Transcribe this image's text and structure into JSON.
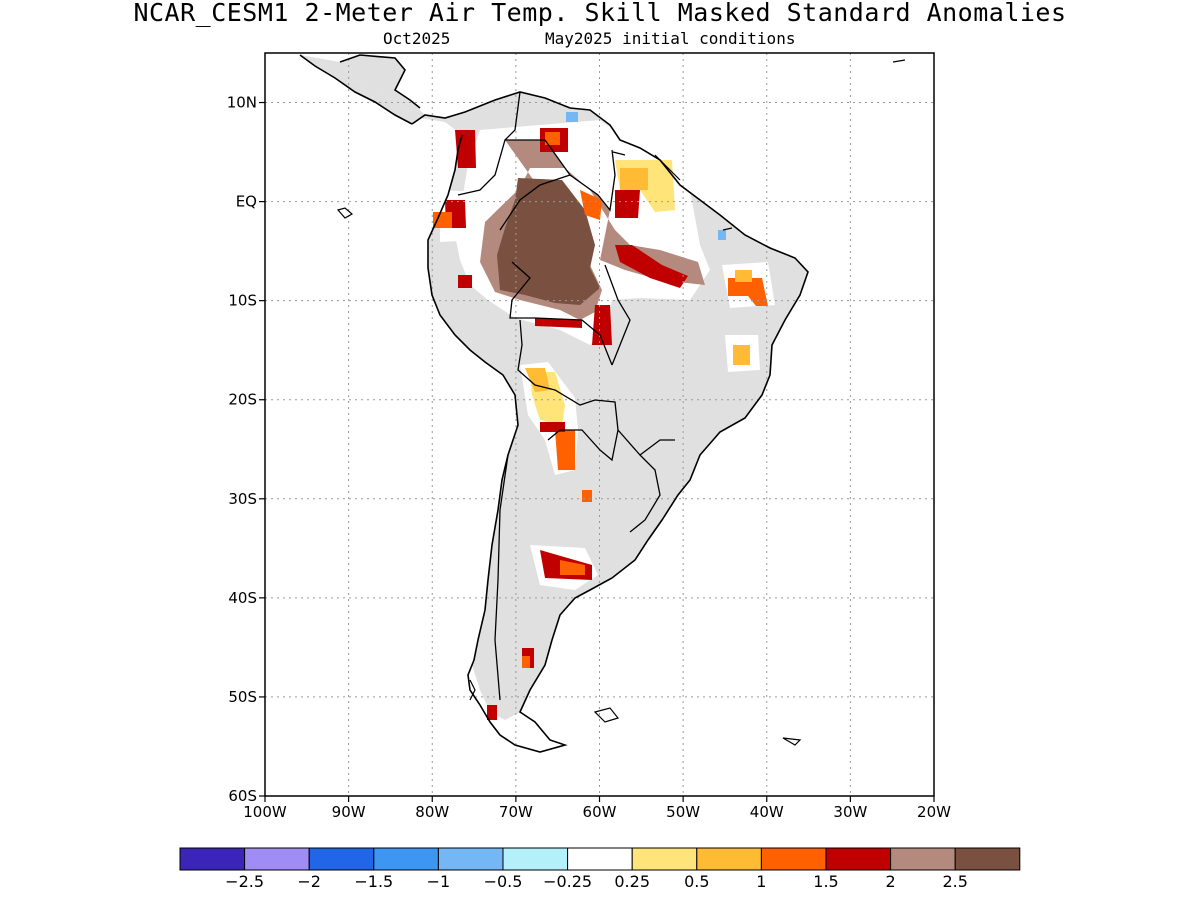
{
  "title": "NCAR_CESM1 2-Meter Air Temp. Skill Masked Standard Anomalies",
  "subtitle_month": "Oct2025",
  "subtitle_ic": "May2025 initial conditions",
  "map": {
    "lon_range": [
      -100,
      -20
    ],
    "lat_range": [
      -60,
      15
    ],
    "lat_ticks": [
      {
        "value": 10,
        "label": "10N"
      },
      {
        "value": 0,
        "label": "EQ"
      },
      {
        "value": -10,
        "label": "10S"
      },
      {
        "value": -20,
        "label": "20S"
      },
      {
        "value": -30,
        "label": "30S"
      },
      {
        "value": -40,
        "label": "40S"
      },
      {
        "value": -50,
        "label": "50S"
      },
      {
        "value": -60,
        "label": "60S"
      }
    ],
    "lon_ticks": [
      {
        "value": -100,
        "label": "100W"
      },
      {
        "value": -90,
        "label": "90W"
      },
      {
        "value": -80,
        "label": "80W"
      },
      {
        "value": -70,
        "label": "70W"
      },
      {
        "value": -60,
        "label": "60W"
      },
      {
        "value": -50,
        "label": "50W"
      },
      {
        "value": -40,
        "label": "40W"
      },
      {
        "value": -30,
        "label": "30W"
      },
      {
        "value": -20,
        "label": "20W"
      }
    ],
    "grid": "dotted",
    "land_color": "#e0e0e0",
    "coastline_color": "#000000"
  },
  "anomaly_regions": [
    {
      "level": "2.5",
      "color": "#7a5040",
      "name": "western-amazon"
    },
    {
      "level": "2",
      "color": "#b48a7e",
      "name": "amazon-surround"
    },
    {
      "level": "2",
      "color": "#c00000",
      "name": "colombia-north"
    },
    {
      "level": "2",
      "color": "#c00000",
      "name": "bolivia-east"
    },
    {
      "level": "2",
      "color": "#c00000",
      "name": "pampas"
    },
    {
      "level": "1.5",
      "color": "#ff6000",
      "name": "ne-brazil"
    },
    {
      "level": "1",
      "color": "#ffbb33",
      "name": "guyana"
    },
    {
      "level": "1",
      "color": "#ffbb33",
      "name": "bahia"
    },
    {
      "level": "1",
      "color": "#ffbb33",
      "name": "chaco-north"
    },
    {
      "level": "1.5",
      "color": "#ff6000",
      "name": "chaco-south"
    },
    {
      "level": "2",
      "color": "#c00000",
      "name": "patagonia"
    },
    {
      "level": "-0.5",
      "color": "#75b7f5",
      "name": "venezuela-coast"
    }
  ],
  "colorbar": {
    "colors": [
      "#3a25b8",
      "#9f8cf5",
      "#2066e6",
      "#3c96f2",
      "#75b7f5",
      "#b4f0fa",
      "#ffffff",
      "#ffe47a",
      "#ffbb33",
      "#ff6000",
      "#c00000",
      "#b48a7e",
      "#7a5040"
    ],
    "labels": [
      "-2.5",
      "-2",
      "-1.5",
      "-1",
      "-0.5",
      "-0.25",
      "0.25",
      "0.5",
      "1",
      "1.5",
      "2",
      "2.5"
    ]
  }
}
